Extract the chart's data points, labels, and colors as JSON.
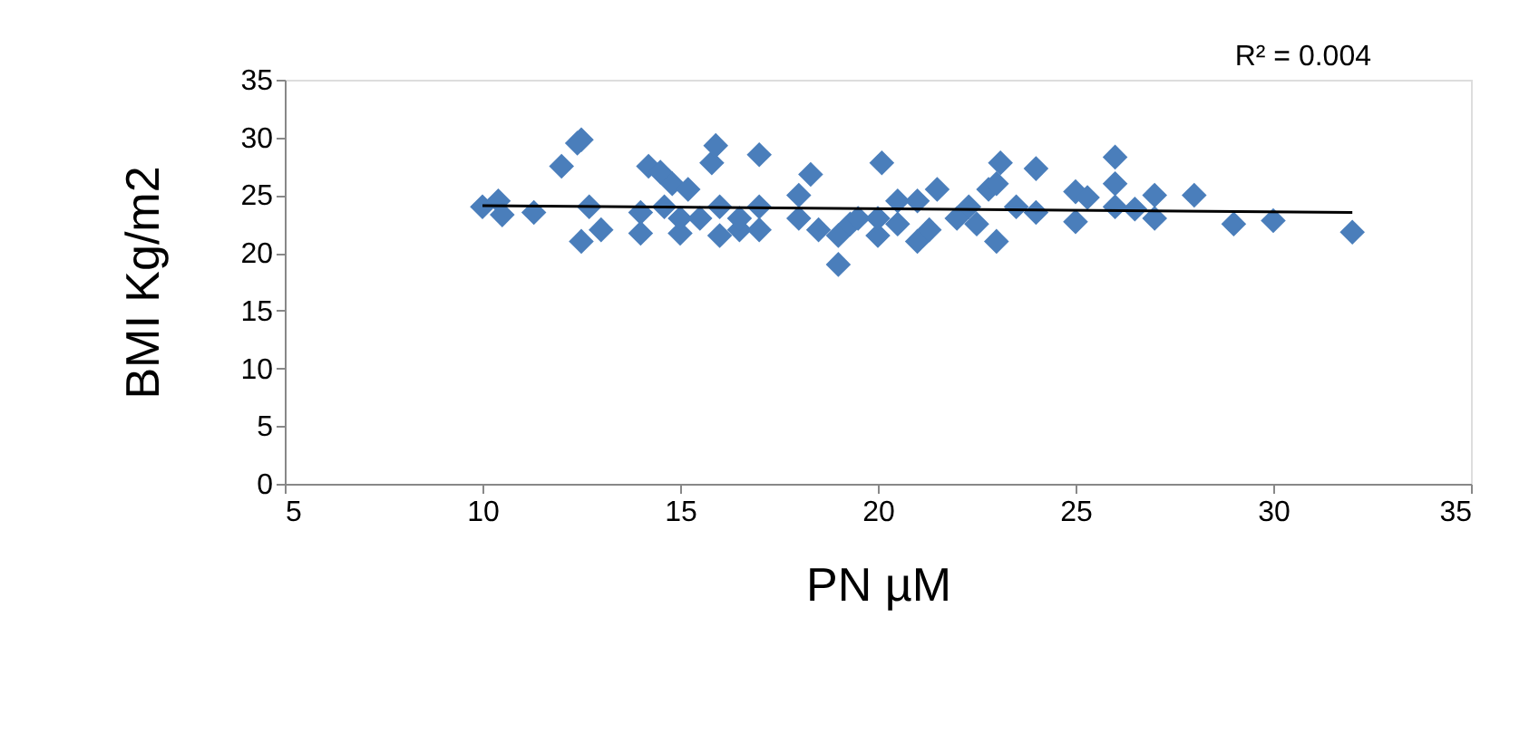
{
  "chart_data": {
    "type": "scatter",
    "xlabel": "PN µM",
    "ylabel": "BMI Kg/m2",
    "annotations": [
      "R² = 0.004"
    ],
    "xlim": [
      5,
      35
    ],
    "xticks": [
      5,
      10,
      15,
      20,
      25,
      30,
      35
    ],
    "ylim": [
      0,
      35
    ],
    "yticks": [
      0,
      5,
      10,
      15,
      20,
      25,
      30,
      35
    ],
    "grid": false,
    "marker": "diamond",
    "series": [
      {
        "color": "#4a7ebb",
        "x": [
          10,
          10.4,
          10.5,
          11.3,
          12,
          12.4,
          12.5,
          12.5,
          12.7,
          13,
          14,
          14,
          14.2,
          14.5,
          14.6,
          14.8,
          15,
          15,
          15.2,
          15.5,
          15.8,
          15.9,
          16,
          16,
          16.5,
          16.5,
          17,
          17,
          17,
          18,
          18,
          18.3,
          18.5,
          19,
          19,
          19.3,
          19.5,
          20,
          20,
          20.1,
          20.5,
          20.5,
          21,
          21,
          21.3,
          21.5,
          22,
          22.3,
          22.5,
          22.8,
          23,
          23,
          23.1,
          23.5,
          24,
          24,
          25,
          25,
          25.3,
          26,
          26,
          26,
          26.5,
          27,
          27,
          28,
          29,
          30,
          32
        ],
        "values": [
          24,
          24.5,
          23.3,
          23.5,
          27.5,
          29.5,
          29.8,
          21,
          24,
          22,
          23.5,
          21.7,
          27.5,
          27,
          24,
          26,
          21.7,
          23,
          25.5,
          23,
          27.8,
          29.3,
          24,
          21.5,
          22,
          23,
          28.5,
          24,
          22,
          25,
          23,
          26.8,
          22,
          19,
          21.5,
          22.5,
          23,
          21.5,
          23,
          27.8,
          24.5,
          22.5,
          21,
          24.5,
          22,
          25.5,
          23,
          24,
          22.5,
          25.5,
          21,
          26,
          27.8,
          24,
          23.5,
          27.3,
          25.3,
          22.7,
          24.8,
          28.3,
          26,
          24,
          23.8,
          25,
          23,
          25,
          22.5,
          22.8,
          21.8
        ]
      },
      {
        "type": "line",
        "color": "#000000",
        "x": [
          10,
          32
        ],
        "values": [
          24.1,
          23.5
        ],
        "marker": "none",
        "line_style": "solid"
      }
    ]
  }
}
